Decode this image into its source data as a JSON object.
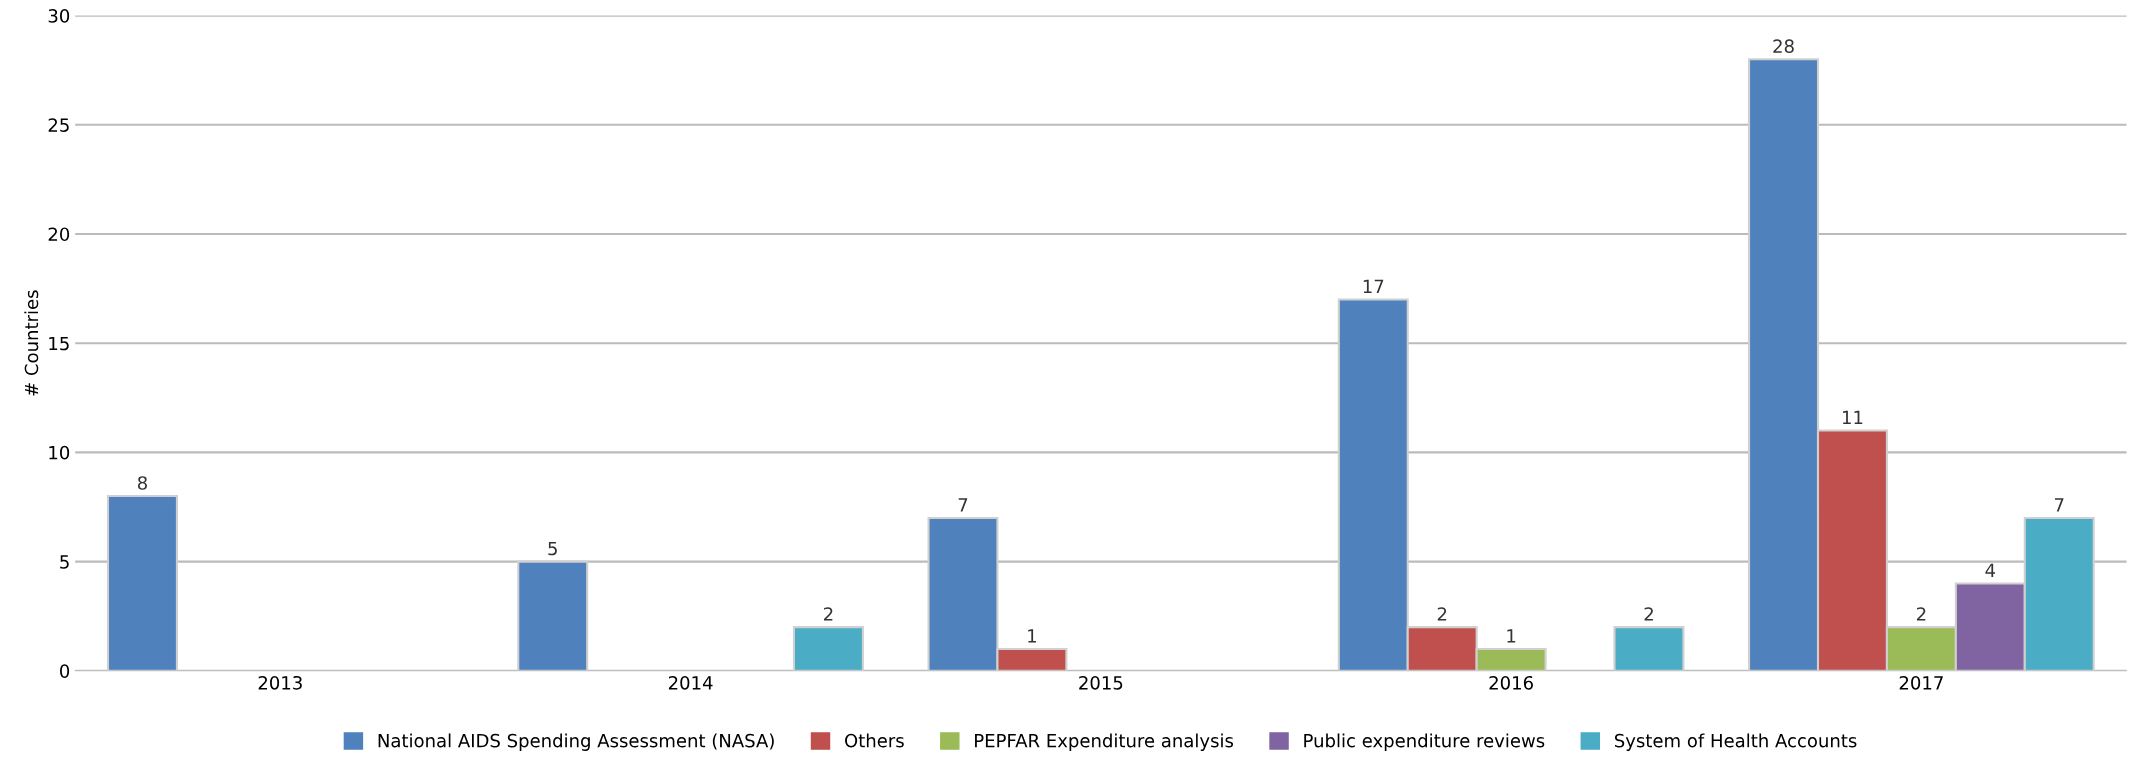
{
  "chart_data": {
    "type": "bar",
    "ylabel": "# Countries",
    "categories": [
      "2013",
      "2014",
      "2015",
      "2016",
      "2017"
    ],
    "series": [
      {
        "name": "National AIDS Spending Assessment (NASA)",
        "color": "#4f81bd",
        "values": [
          8,
          5,
          7,
          17,
          28
        ]
      },
      {
        "name": "Others",
        "color": "#c0504d",
        "values": [
          null,
          null,
          1,
          2,
          11
        ]
      },
      {
        "name": "PEPFAR Expenditure analysis",
        "color": "#9bbb59",
        "values": [
          null,
          null,
          null,
          1,
          2
        ]
      },
      {
        "name": "Public expenditure reviews",
        "color": "#8064a2",
        "values": [
          null,
          null,
          null,
          null,
          4
        ]
      },
      {
        "name": "System of Health Accounts",
        "color": "#4bacc6",
        "values": [
          null,
          2,
          null,
          2,
          7
        ]
      }
    ],
    "ylim": [
      0,
      30
    ],
    "yticks": [
      0,
      5,
      10,
      15,
      20,
      25,
      30
    ],
    "grid": "y",
    "legend": "bottom",
    "data_labels": true
  }
}
